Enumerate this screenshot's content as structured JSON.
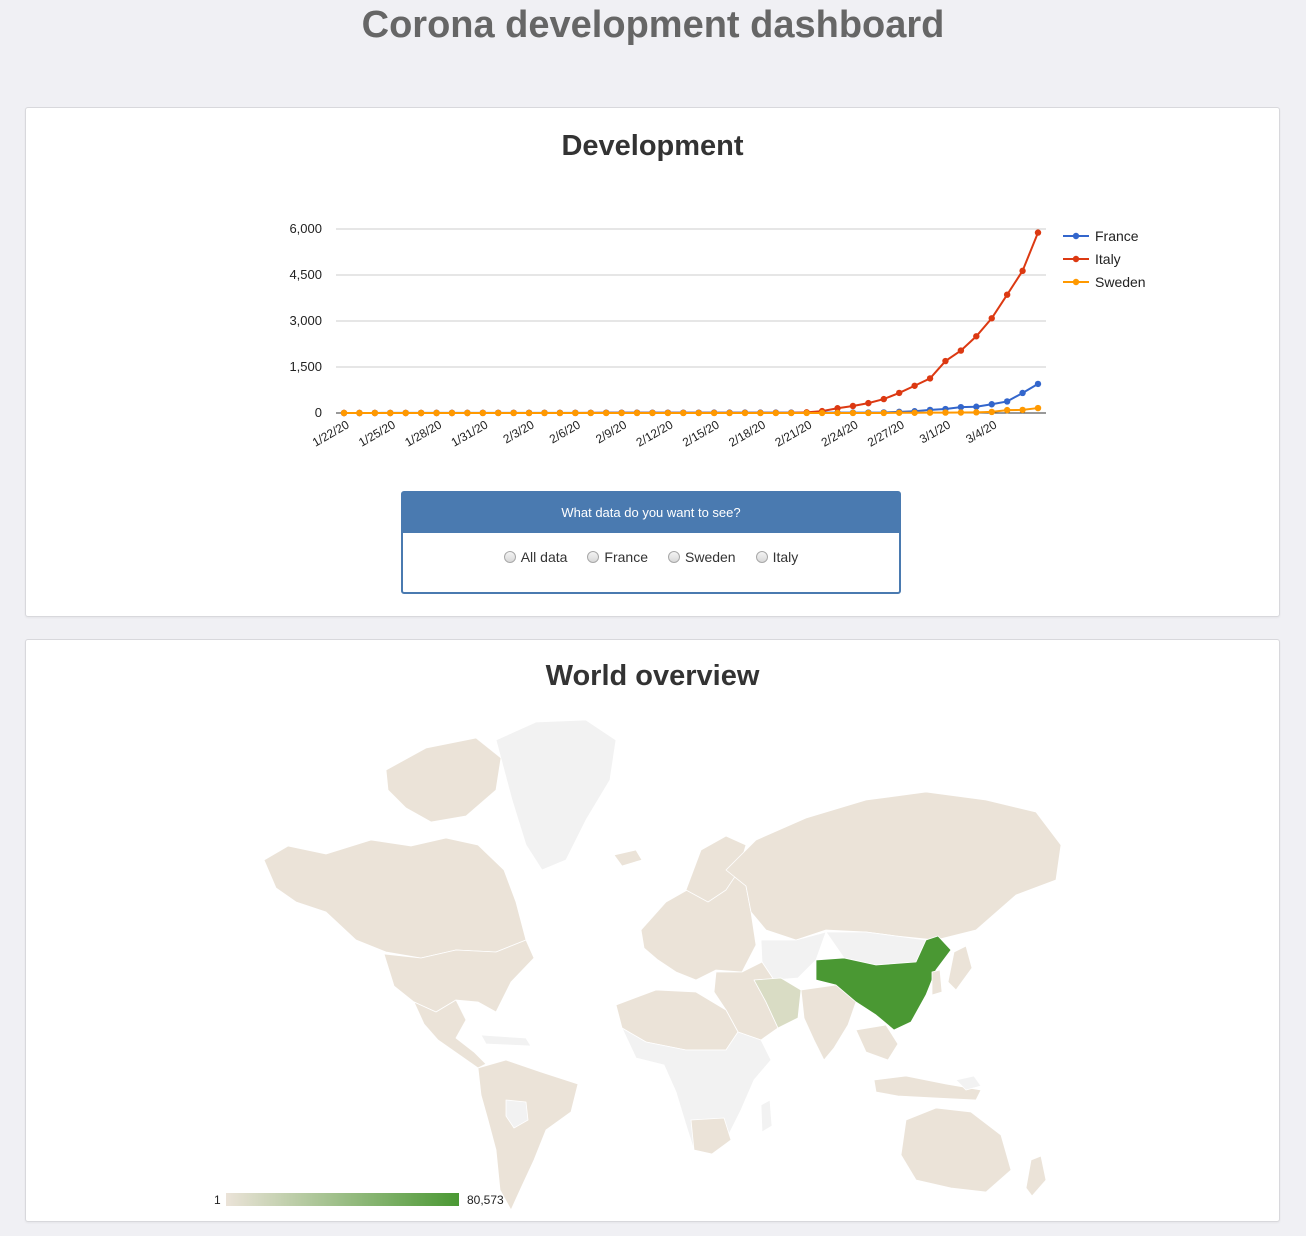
{
  "header": {
    "title": "Corona development dashboard"
  },
  "development": {
    "title": "Development",
    "selector": {
      "heading": "What data do you want to see?",
      "options": [
        "All data",
        "France",
        "Sweden",
        "Italy"
      ]
    }
  },
  "world": {
    "title": "World overview",
    "legend": {
      "min": "1",
      "max": "80,573"
    },
    "colors": {
      "none": "#f2f2f2",
      "low": "#ebe3d8",
      "mid": "#d9dcc4",
      "high": "#4a9833"
    }
  },
  "chart_data": {
    "type": "line",
    "x": [
      "1/22/20",
      "1/23/20",
      "1/24/20",
      "1/25/20",
      "1/26/20",
      "1/27/20",
      "1/28/20",
      "1/29/20",
      "1/30/20",
      "1/31/20",
      "2/1/20",
      "2/2/20",
      "2/3/20",
      "2/4/20",
      "2/5/20",
      "2/6/20",
      "2/7/20",
      "2/8/20",
      "2/9/20",
      "2/10/20",
      "2/11/20",
      "2/12/20",
      "2/13/20",
      "2/14/20",
      "2/15/20",
      "2/16/20",
      "2/17/20",
      "2/18/20",
      "2/19/20",
      "2/20/20",
      "2/21/20",
      "2/22/20",
      "2/23/20",
      "2/24/20",
      "2/25/20",
      "2/26/20",
      "2/27/20",
      "2/28/20",
      "2/29/20",
      "3/1/20",
      "3/2/20",
      "3/3/20",
      "3/4/20",
      "3/5/20",
      "3/6/20",
      "3/7/20"
    ],
    "x_tick_labels": [
      "1/22/20",
      "1/25/20",
      "1/28/20",
      "1/31/20",
      "2/3/20",
      "2/6/20",
      "2/9/20",
      "2/12/20",
      "2/15/20",
      "2/18/20",
      "2/21/20",
      "2/24/20",
      "2/27/20",
      "3/1/20",
      "3/4/20"
    ],
    "series": [
      {
        "name": "France",
        "color": "#3366cc",
        "values": [
          0,
          0,
          2,
          3,
          3,
          3,
          4,
          5,
          5,
          5,
          6,
          6,
          6,
          6,
          6,
          6,
          6,
          11,
          11,
          11,
          11,
          11,
          11,
          11,
          12,
          12,
          12,
          12,
          12,
          12,
          12,
          12,
          12,
          12,
          14,
          18,
          38,
          57,
          100,
          130,
          191,
          204,
          285,
          377,
          653,
          949
        ]
      },
      {
        "name": "Italy",
        "color": "#dc3912",
        "values": [
          0,
          0,
          0,
          0,
          0,
          0,
          0,
          0,
          0,
          2,
          2,
          2,
          2,
          2,
          2,
          2,
          3,
          3,
          3,
          3,
          3,
          3,
          3,
          3,
          3,
          3,
          3,
          3,
          3,
          3,
          20,
          62,
          155,
          229,
          322,
          453,
          655,
          888,
          1128,
          1694,
          2036,
          2502,
          3089,
          3858,
          4636,
          5883
        ]
      },
      {
        "name": "Sweden",
        "color": "#ff9900",
        "values": [
          0,
          0,
          0,
          0,
          0,
          0,
          0,
          0,
          0,
          1,
          1,
          1,
          1,
          1,
          1,
          1,
          1,
          1,
          1,
          1,
          1,
          1,
          1,
          1,
          1,
          1,
          1,
          1,
          1,
          1,
          1,
          1,
          1,
          1,
          1,
          2,
          7,
          7,
          12,
          14,
          15,
          21,
          35,
          94,
          101,
          161
        ]
      }
    ],
    "yticks": [
      0,
      1500,
      3000,
      4500,
      6000
    ],
    "ytick_labels": [
      "0",
      "1,500",
      "3,000",
      "4,500",
      "6,000"
    ],
    "ylim": [
      0,
      6000
    ],
    "grid": true,
    "legend": "right"
  }
}
